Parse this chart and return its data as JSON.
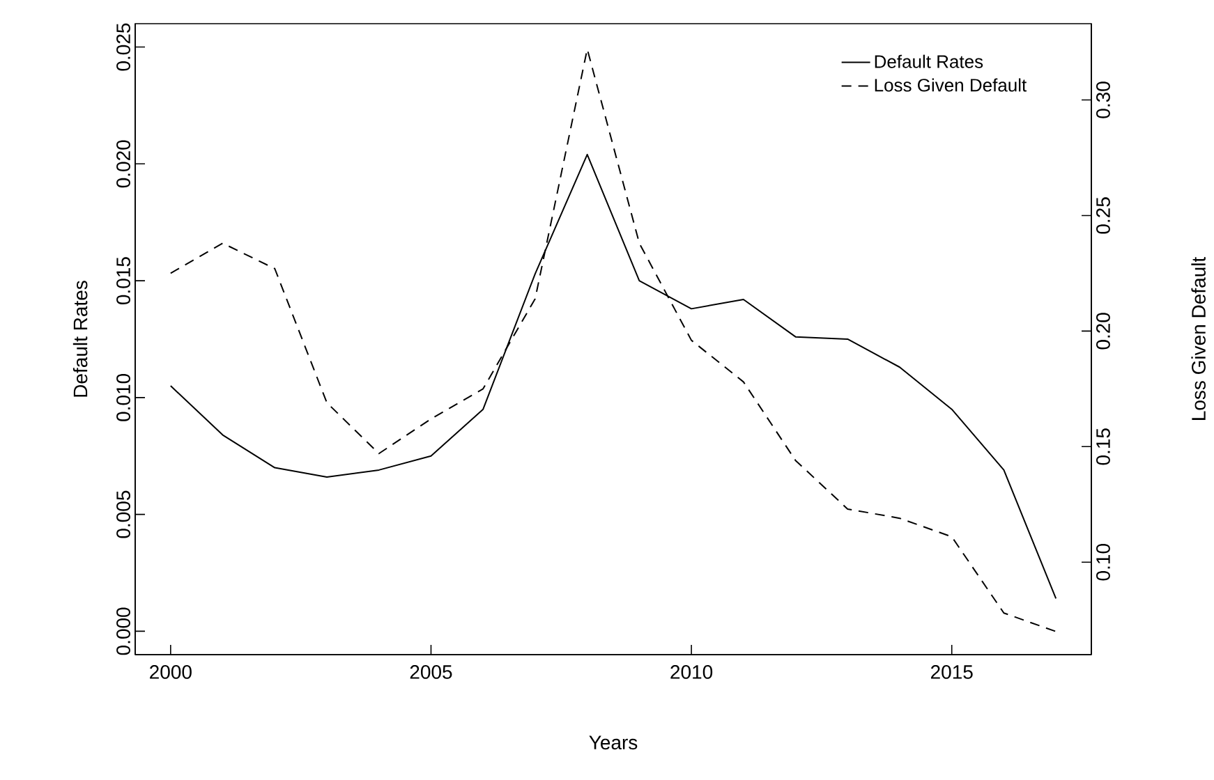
{
  "chart_data": {
    "type": "line",
    "xlabel": "Years",
    "ylabel": "Default Rates",
    "y2label": "Loss Given Default",
    "x": [
      2000,
      2001,
      2002,
      2003,
      2004,
      2005,
      2006,
      2007,
      2008,
      2009,
      2010,
      2011,
      2012,
      2013,
      2014,
      2015,
      2016,
      2017
    ],
    "series": [
      {
        "name": "Default Rates",
        "color": "#000000",
        "line_style": "solid",
        "values": [
          0.0105,
          0.0084,
          0.007,
          0.0066,
          0.0069,
          0.0075,
          0.0095,
          0.0153,
          0.0204,
          0.015,
          0.0138,
          0.0142,
          0.0126,
          0.0125,
          0.0113,
          0.0095,
          0.0069,
          0.0014
        ]
      },
      {
        "name": "Loss Given Default",
        "color": "#000000",
        "line_style": "dashed",
        "axis": "y2",
        "values": [
          0.225,
          0.238,
          0.227,
          0.169,
          0.147,
          0.162,
          0.175,
          0.214,
          0.322,
          0.238,
          0.196,
          0.178,
          0.144,
          0.123,
          0.119,
          0.111,
          0.078,
          0.07
        ]
      }
    ],
    "xlim": [
      1999.32,
      2017.68
    ],
    "xticks": [
      2000,
      2005,
      2010,
      2015
    ],
    "ylim": [
      -0.001,
      0.026
    ],
    "yticks": [
      {
        "value": 0,
        "label": "0.000"
      },
      {
        "value": 0.005,
        "label": "0.005"
      },
      {
        "value": 0.01,
        "label": "0.010"
      },
      {
        "value": 0.015,
        "label": "0.015"
      },
      {
        "value": 0.02,
        "label": "0.020"
      },
      {
        "value": 0.025,
        "label": "0.025"
      }
    ],
    "y2lim": [
      0.06,
      0.333
    ],
    "y2ticks": [
      {
        "value": 0.1,
        "label": "0.10"
      },
      {
        "value": 0.15,
        "label": "0.15"
      },
      {
        "value": 0.2,
        "label": "0.20"
      },
      {
        "value": 0.25,
        "label": "0.25"
      },
      {
        "value": 0.3,
        "label": "0.30"
      }
    ],
    "grid": false,
    "legend": "top right",
    "marker": "none"
  }
}
